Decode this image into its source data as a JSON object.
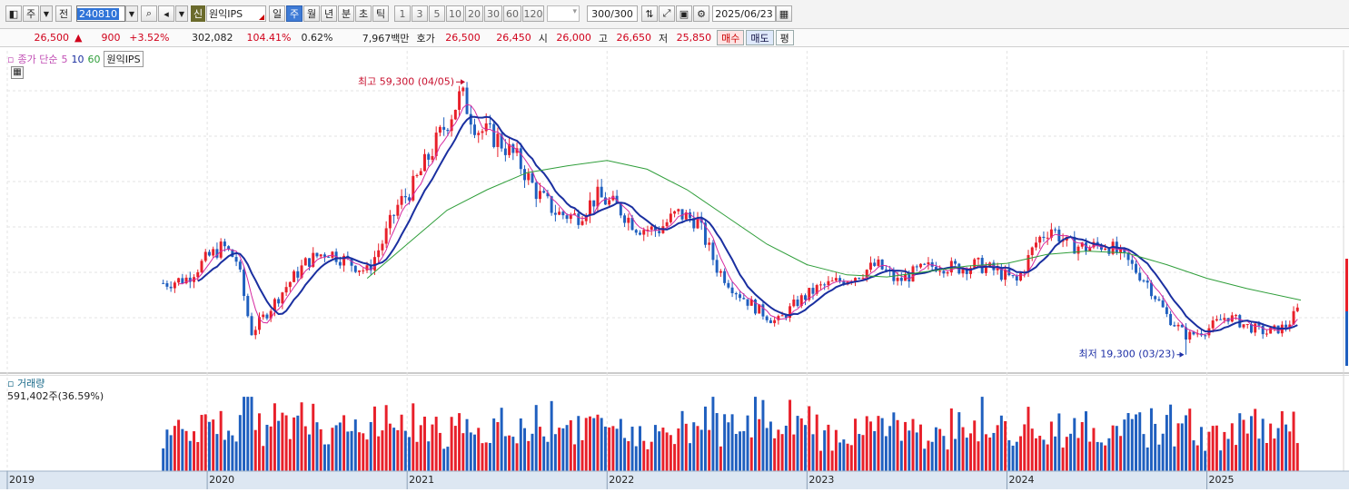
{
  "toolbar": {
    "period_labels": [
      "주",
      "전"
    ],
    "stock_code": "240810",
    "stock_badge": "신",
    "stock_name": "원익IPS",
    "period_tabs": [
      "일",
      "주",
      "월",
      "년",
      "분",
      "초",
      "틱"
    ],
    "active_tab_index": 1,
    "interval_buttons": [
      "1",
      "3",
      "5",
      "10",
      "20",
      "30",
      "60",
      "120"
    ],
    "bar_count": "300/300",
    "date": "2025/06/23"
  },
  "quote": {
    "price": "26,500",
    "change": "900",
    "change_pct": "+3.52%",
    "volume": "302,082",
    "volume_ratio": "104.41%",
    "turnover_pct": "0.62%",
    "amount": "7,967백만",
    "bid_ask_label": "호가",
    "ask": "26,500",
    "bid": "26,450",
    "open_label": "시",
    "open": "26,000",
    "high_label": "고",
    "high": "26,650",
    "low_label": "저",
    "low": "25,850",
    "buy_label": "매수",
    "sell_label": "매도",
    "avg_label": "평"
  },
  "price_legend": {
    "title": "종가 단순",
    "ma5": "5",
    "ma10": "10",
    "ma60": "60",
    "stock": "원익IPS"
  },
  "annotations": {
    "high_text": "최고 59,300 (04/05)",
    "low_text": "최저 19,300 (03/23)"
  },
  "volume_panel": {
    "title": "거래량",
    "value": "591,402주(36.59%)"
  },
  "colors": {
    "up": "#e8202a",
    "down": "#1f5fbf",
    "ma5": "#d62aa0",
    "ma10": "#1a2fa0",
    "ma60": "#2f9e3a"
  },
  "chart_data": {
    "type": "candlestick",
    "frequency": "weekly",
    "ylim": [
      17000,
      62000
    ],
    "x_tick_labels": [
      "2019",
      "2020",
      "2021",
      "2022",
      "2023",
      "2024",
      "2025"
    ],
    "high": {
      "value": 59300,
      "date": "04/05"
    },
    "low": {
      "value": 19300,
      "date": "03/23"
    },
    "close_series": [
      [
        2019.8,
        29800
      ],
      [
        2019.9,
        30500
      ],
      [
        2020.0,
        33500
      ],
      [
        2020.08,
        35200
      ],
      [
        2020.15,
        33000
      ],
      [
        2020.22,
        22500
      ],
      [
        2020.3,
        25500
      ],
      [
        2020.4,
        29500
      ],
      [
        2020.5,
        33000
      ],
      [
        2020.6,
        34500
      ],
      [
        2020.7,
        33000
      ],
      [
        2020.8,
        31500
      ],
      [
        2020.88,
        36000
      ],
      [
        2020.95,
        41000
      ],
      [
        2021.03,
        44000
      ],
      [
        2021.12,
        49000
      ],
      [
        2021.2,
        53500
      ],
      [
        2021.27,
        57500
      ],
      [
        2021.35,
        52500
      ],
      [
        2021.45,
        51000
      ],
      [
        2021.55,
        48000
      ],
      [
        2021.65,
        43000
      ],
      [
        2021.75,
        40000
      ],
      [
        2021.85,
        39500
      ],
      [
        2021.95,
        42500
      ],
      [
        2022.05,
        41000
      ],
      [
        2022.15,
        38000
      ],
      [
        2022.25,
        37500
      ],
      [
        2022.35,
        40000
      ],
      [
        2022.45,
        39000
      ],
      [
        2022.55,
        32000
      ],
      [
        2022.65,
        28500
      ],
      [
        2022.75,
        26000
      ],
      [
        2022.85,
        24000
      ],
      [
        2022.95,
        27000
      ],
      [
        2023.05,
        29000
      ],
      [
        2023.15,
        30000
      ],
      [
        2023.25,
        31000
      ],
      [
        2023.35,
        32500
      ],
      [
        2023.45,
        30000
      ],
      [
        2023.55,
        31500
      ],
      [
        2023.65,
        32500
      ],
      [
        2023.75,
        32000
      ],
      [
        2023.85,
        32500
      ],
      [
        2023.95,
        31500
      ],
      [
        2024.05,
        30000
      ],
      [
        2024.15,
        36000
      ],
      [
        2024.22,
        38000
      ],
      [
        2024.3,
        35500
      ],
      [
        2024.4,
        35000
      ],
      [
        2024.5,
        35500
      ],
      [
        2024.6,
        33000
      ],
      [
        2024.7,
        30000
      ],
      [
        2024.8,
        25000
      ],
      [
        2024.9,
        22000
      ],
      [
        2025.0,
        23000
      ],
      [
        2025.1,
        25000
      ],
      [
        2025.2,
        23500
      ],
      [
        2025.3,
        22500
      ],
      [
        2025.4,
        23500
      ],
      [
        2025.47,
        26500
      ]
    ],
    "ma60_series": [
      [
        2020.8,
        30500
      ],
      [
        2021.0,
        35500
      ],
      [
        2021.2,
        40500
      ],
      [
        2021.4,
        43500
      ],
      [
        2021.6,
        46000
      ],
      [
        2021.8,
        47000
      ],
      [
        2022.0,
        47800
      ],
      [
        2022.2,
        46500
      ],
      [
        2022.4,
        43500
      ],
      [
        2022.6,
        39500
      ],
      [
        2022.8,
        35500
      ],
      [
        2023.0,
        32500
      ],
      [
        2023.2,
        31000
      ],
      [
        2023.4,
        30700
      ],
      [
        2023.6,
        31500
      ],
      [
        2023.8,
        32300
      ],
      [
        2024.0,
        32700
      ],
      [
        2024.2,
        34000
      ],
      [
        2024.4,
        34500
      ],
      [
        2024.6,
        34200
      ],
      [
        2024.8,
        32500
      ],
      [
        2025.0,
        30500
      ],
      [
        2025.2,
        29000
      ],
      [
        2025.47,
        27300
      ]
    ]
  }
}
